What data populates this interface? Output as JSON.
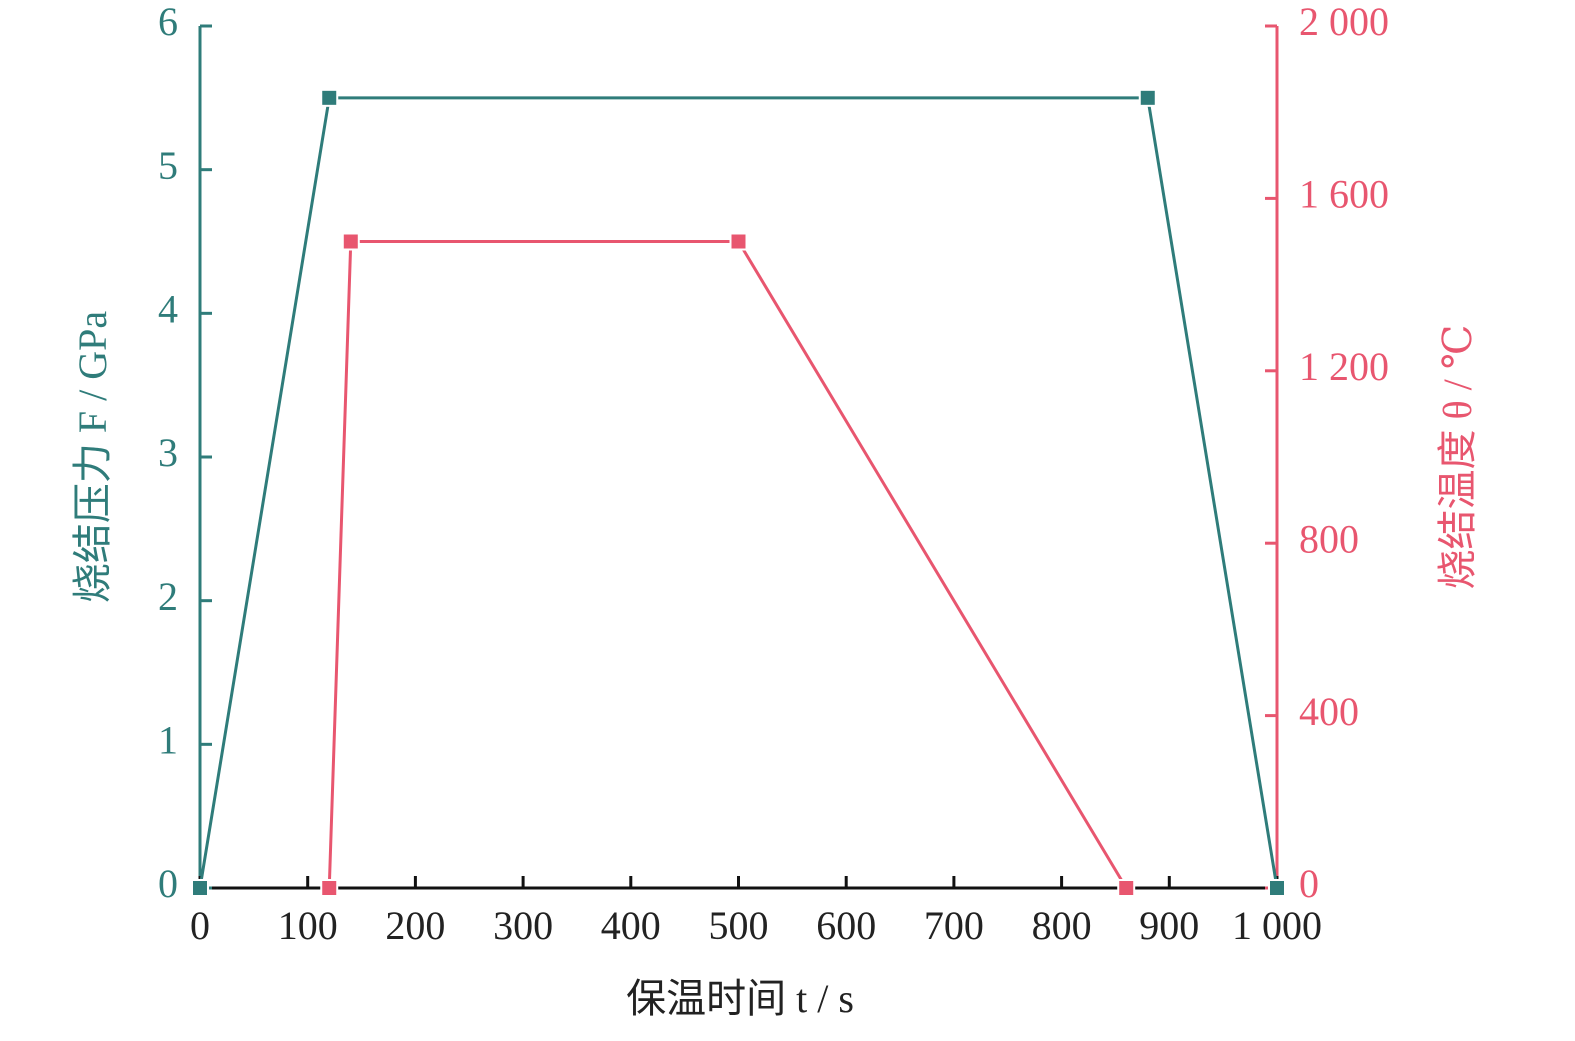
{
  "chart_data": {
    "type": "line",
    "xlabel": "保温时间 t / s",
    "ylabel": "烧结压力 F / GPa",
    "y2label": "烧结温度 θ / ℃",
    "xlim": [
      0,
      1000
    ],
    "xticks": [
      0,
      100,
      200,
      300,
      400,
      500,
      600,
      700,
      800,
      900,
      {
        "value": 1000,
        "label": "1 000"
      }
    ],
    "ylim": [
      0,
      6
    ],
    "yticks": [
      0,
      1,
      2,
      3,
      4,
      5,
      6
    ],
    "y2lim": [
      0,
      2000
    ],
    "y2ticks": [
      0,
      400,
      800,
      {
        "value": 1200,
        "label": "1 200"
      },
      {
        "value": 1600,
        "label": "1 600"
      },
      {
        "value": 2000,
        "label": "2 000"
      }
    ],
    "series": [
      {
        "name": "烧结压力",
        "color": "#2f7c7a",
        "x": [
          0,
          120,
          880,
          1000
        ],
        "values": [
          0,
          5.5,
          5.5,
          0
        ]
      },
      {
        "name": "烧结温度",
        "color": "#e8566f",
        "axis": "y2",
        "x": [
          120,
          140,
          500,
          860
        ],
        "values": [
          0,
          1500,
          1500,
          0
        ]
      }
    ]
  }
}
